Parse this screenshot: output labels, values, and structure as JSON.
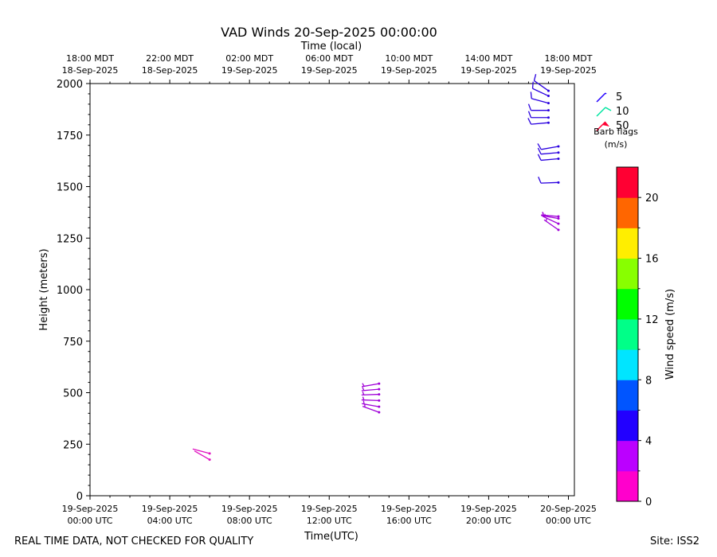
{
  "chart_data": {
    "type": "barb",
    "title": "VAD Winds 20-Sep-2025 00:00:00",
    "top_axis_title": "Time (local)",
    "top_ticks": [
      {
        "line1": "18:00 MDT",
        "line2": "18-Sep-2025"
      },
      {
        "line1": "22:00 MDT",
        "line2": "18-Sep-2025"
      },
      {
        "line1": "02:00 MDT",
        "line2": "19-Sep-2025"
      },
      {
        "line1": "06:00 MDT",
        "line2": "19-Sep-2025"
      },
      {
        "line1": "10:00 MDT",
        "line2": "19-Sep-2025"
      },
      {
        "line1": "14:00 MDT",
        "line2": "19-Sep-2025"
      },
      {
        "line1": "18:00 MDT",
        "line2": "19-Sep-2025"
      }
    ],
    "bottom_ticks": [
      {
        "line1": "19-Sep-2025",
        "line2": "00:00 UTC"
      },
      {
        "line1": "19-Sep-2025",
        "line2": "04:00 UTC"
      },
      {
        "line1": "19-Sep-2025",
        "line2": "08:00 UTC"
      },
      {
        "line1": "19-Sep-2025",
        "line2": "12:00 UTC"
      },
      {
        "line1": "19-Sep-2025",
        "line2": "16:00 UTC"
      },
      {
        "line1": "19-Sep-2025",
        "line2": "20:00 UTC"
      },
      {
        "line1": "20-Sep-2025",
        "line2": "00:00 UTC"
      }
    ],
    "xlabel": "Time(UTC)",
    "ylabel": "Height (meters)",
    "xlim_hours_utc": [
      0,
      24.3
    ],
    "ylim": [
      0,
      2000
    ],
    "y_ticks": [
      0,
      250,
      500,
      750,
      1000,
      1250,
      1500,
      1750,
      2000
    ],
    "legend": {
      "placement": "top-right",
      "entries": [
        "5",
        "10",
        "50"
      ],
      "title_line1": "Barb flags",
      "title_line2": "(m/s)"
    },
    "colorbar": {
      "label": "Wind speed (m/s)",
      "range": [
        0,
        22
      ],
      "ticks": [
        0,
        4,
        8,
        12,
        16,
        20
      ],
      "colors": [
        "#ff00cc",
        "#bb00ff",
        "#2200ff",
        "#0055ff",
        "#00e5ff",
        "#00ff88",
        "#00ff00",
        "#88ff00",
        "#ffee00",
        "#ff6600",
        "#ff0033"
      ]
    },
    "barbs": [
      {
        "t": 6.0,
        "h": 175,
        "speed": 2.0,
        "dir": 300,
        "color": "#e010c0"
      },
      {
        "t": 6.0,
        "h": 205,
        "speed": 2.0,
        "dir": 285,
        "color": "#e010c0"
      },
      {
        "t": 14.5,
        "h": 405,
        "speed": 3.5,
        "dir": 290,
        "color": "#a000d8"
      },
      {
        "t": 14.5,
        "h": 432,
        "speed": 3.5,
        "dir": 280,
        "color": "#a000d8"
      },
      {
        "t": 14.5,
        "h": 462,
        "speed": 3.5,
        "dir": 272,
        "color": "#a000d8"
      },
      {
        "t": 14.5,
        "h": 492,
        "speed": 3.5,
        "dir": 268,
        "color": "#a000d8"
      },
      {
        "t": 14.5,
        "h": 517,
        "speed": 3.5,
        "dir": 265,
        "color": "#a000d8"
      },
      {
        "t": 14.5,
        "h": 544,
        "speed": 4.0,
        "dir": 260,
        "color": "#a000d8"
      },
      {
        "t": 23.5,
        "h": 1290,
        "speed": 3.5,
        "dir": 305,
        "color": "#a000d8"
      },
      {
        "t": 23.5,
        "h": 1320,
        "speed": 3.5,
        "dir": 295,
        "color": "#a000d8"
      },
      {
        "t": 23.5,
        "h": 1345,
        "speed": 3.5,
        "dir": 280,
        "color": "#a000d8"
      },
      {
        "t": 23.5,
        "h": 1355,
        "speed": 3.5,
        "dir": 275,
        "color": "#a000d8"
      },
      {
        "t": 23.5,
        "h": 1520,
        "speed": 5.0,
        "dir": 268,
        "color": "#2a00e0"
      },
      {
        "t": 23.5,
        "h": 1635,
        "speed": 5.5,
        "dir": 265,
        "color": "#2a00e0"
      },
      {
        "t": 23.5,
        "h": 1665,
        "speed": 5.5,
        "dir": 265,
        "color": "#2a00e0"
      },
      {
        "t": 23.5,
        "h": 1695,
        "speed": 5.5,
        "dir": 260,
        "color": "#2a00e0"
      },
      {
        "t": 23.0,
        "h": 1810,
        "speed": 5.5,
        "dir": 265,
        "color": "#2a00e0"
      },
      {
        "t": 23.0,
        "h": 1835,
        "speed": 5.5,
        "dir": 270,
        "color": "#2a00e0"
      },
      {
        "t": 23.0,
        "h": 1870,
        "speed": 5.5,
        "dir": 270,
        "color": "#2a00e0"
      },
      {
        "t": 23.0,
        "h": 1905,
        "speed": 5.5,
        "dir": 285,
        "color": "#2a00e0"
      },
      {
        "t": 23.0,
        "h": 1940,
        "speed": 5.5,
        "dir": 295,
        "color": "#2a00e0"
      },
      {
        "t": 23.0,
        "h": 1965,
        "speed": 5.0,
        "dir": 305,
        "color": "#2a00e0"
      }
    ]
  },
  "footer": {
    "left": "REAL TIME DATA, NOT CHECKED FOR QUALITY",
    "right": "Site: ISS2"
  }
}
